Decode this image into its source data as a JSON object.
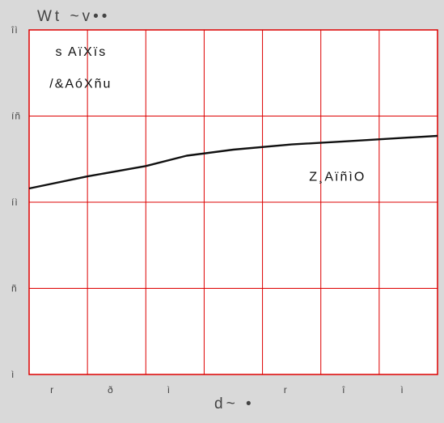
{
  "chart_data": {
    "type": "line",
    "title": "",
    "axis_title_top": "Wt ~v••",
    "xlabel": "d~ •",
    "ylabel": "",
    "grid": true,
    "xlim": [
      0,
      7
    ],
    "ylim": [
      0,
      4
    ],
    "x_ticks": [
      {
        "pos": 1,
        "label": "r"
      },
      {
        "pos": 2,
        "label": "ð"
      },
      {
        "pos": 3,
        "label": "ì"
      },
      {
        "pos": 4,
        "label": ""
      },
      {
        "pos": 5,
        "label": "r"
      },
      {
        "pos": 6,
        "label": "î"
      },
      {
        "pos": 7,
        "label": "ì"
      }
    ],
    "y_ticks": [
      {
        "pos": 0,
        "label": "ì"
      },
      {
        "pos": 1,
        "label": "ñ"
      },
      {
        "pos": 2,
        "label": "íì"
      },
      {
        "pos": 3,
        "label": "íñ"
      },
      {
        "pos": 4,
        "label": "îì"
      }
    ],
    "annotations": [
      {
        "text": "s AïXïs",
        "x": 0.45,
        "y": 3.7
      },
      {
        "text": "/&AóXñu",
        "x": 0.35,
        "y": 3.33
      },
      {
        "text": "Z¸AïñìO",
        "x": 4.8,
        "y": 2.25
      }
    ],
    "series": [
      {
        "label": "Z¸AïñìO",
        "x": [
          0,
          1,
          2,
          2.7,
          3.5,
          4.5,
          5.5,
          6.5,
          7
        ],
        "y": [
          2.16,
          2.3,
          2.42,
          2.54,
          2.61,
          2.67,
          2.71,
          2.75,
          2.77
        ]
      }
    ]
  }
}
